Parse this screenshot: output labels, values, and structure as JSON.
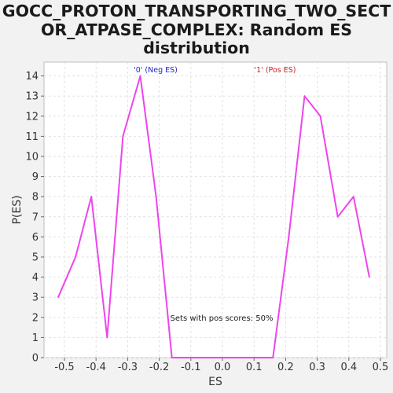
{
  "chart_data": {
    "type": "line",
    "title_lines": [
      "GOCC_PROTON_TRANSPORTING_TWO_SECT",
      "OR_ATPASE_COMPLEX: Random ES",
      "distribution"
    ],
    "xlabel": "ES",
    "ylabel": "P(ES)",
    "xlim": [
      -0.55,
      0.51
    ],
    "ylim": [
      0,
      14.5
    ],
    "x_ticks": [
      "-0.5",
      "-0.4",
      "-0.3",
      "-0.2",
      "-0.1",
      "0.0",
      "0.1",
      "0.2",
      "0.3",
      "0.4",
      "0.5"
    ],
    "y_ticks": [
      "0",
      "1",
      "2",
      "3",
      "4",
      "5",
      "6",
      "7",
      "8",
      "9",
      "10",
      "11",
      "12",
      "13",
      "14"
    ],
    "grid": true,
    "legend": [
      {
        "label": "'0' (Neg ES)",
        "color": "#2222cc"
      },
      {
        "label": "'1' (Pos ES)",
        "color": "#cc2222"
      }
    ],
    "annotation": "Sets with pos scores: 50%",
    "line_color": "#ee44ee",
    "series": [
      {
        "x": [
          -0.52,
          -0.465,
          -0.415,
          -0.365,
          -0.315,
          -0.26,
          -0.21,
          -0.16,
          -0.11,
          -0.06,
          -0.01,
          0.04,
          0.09,
          0.14,
          0.16,
          0.21,
          0.26,
          0.31,
          0.365,
          0.415,
          0.465
        ],
        "y": [
          3,
          5,
          8,
          1,
          11,
          14,
          8,
          0,
          0,
          0,
          0,
          0,
          0,
          0,
          0,
          6,
          13,
          12,
          7,
          8,
          4
        ]
      }
    ]
  }
}
